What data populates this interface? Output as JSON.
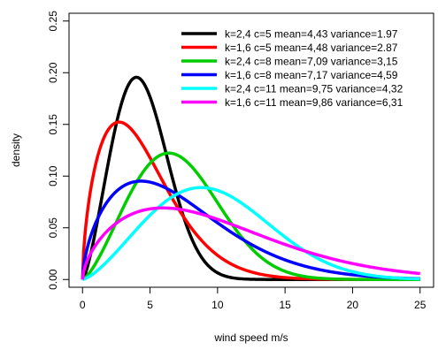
{
  "chart_data": {
    "type": "line",
    "xlabel": "wind speed m/s",
    "ylabel": "density",
    "xlim": [
      0,
      25
    ],
    "ylim": [
      0,
      0.25
    ],
    "x_ticks": [
      "0",
      "5",
      "10",
      "15",
      "20",
      "25"
    ],
    "y_ticks": [
      "0.00",
      "0.05",
      "0.10",
      "0.15",
      "0.20",
      "0.25"
    ],
    "grid": false,
    "legend_position": "top-right",
    "series": [
      {
        "name": "k=2,4  c=5  mean=4,43  variance=1.97",
        "k": 2.4,
        "c": 5,
        "color": "#000000"
      },
      {
        "name": "k=1,6  c=5  mean=4,48  variance=2.87",
        "k": 1.6,
        "c": 5,
        "color": "#ff0000"
      },
      {
        "name": "k=2,4  c=8  mean=7,09  variance=3,15",
        "k": 2.4,
        "c": 8,
        "color": "#00cc00"
      },
      {
        "name": "k=1,6  c=8  mean=7,17  variance=4,59",
        "k": 1.6,
        "c": 8,
        "color": "#0000ff"
      },
      {
        "name": "k=2,4  c=11  mean=9,75  variance=4,32",
        "k": 2.4,
        "c": 11,
        "color": "#00ffff"
      },
      {
        "name": "k=1,6  c=11  mean=9,86  variance=6,31",
        "k": 1.6,
        "c": 11,
        "color": "#ff00ff"
      }
    ]
  }
}
